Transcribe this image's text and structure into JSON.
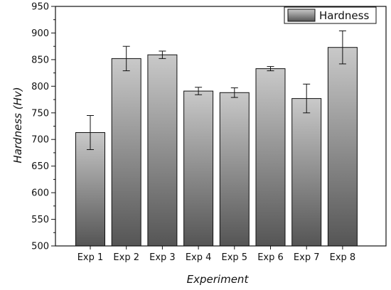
{
  "chart_data": {
    "type": "bar",
    "title": "",
    "xlabel": "Experiment",
    "ylabel": "Hardness (Hv)",
    "categories": [
      "Exp 1",
      "Exp 2",
      "Exp 3",
      "Exp 4",
      "Exp 5",
      "Exp 6",
      "Exp 7",
      "Exp 8"
    ],
    "series": [
      {
        "name": "Hardness",
        "values": [
          713,
          852,
          859,
          791,
          788,
          833,
          777,
          873
        ],
        "error": [
          32,
          23,
          7,
          7,
          9,
          4,
          27,
          31
        ]
      }
    ],
    "ylim": [
      500,
      950
    ],
    "yticks": [
      500,
      550,
      600,
      650,
      700,
      750,
      800,
      850,
      900,
      950
    ],
    "grid": false,
    "legend": "top-right",
    "bar_fill": "vertical-gradient",
    "colors": {
      "bar_top": "#c9c9c9",
      "bar_bottom": "#555555",
      "bar_edge": "#111111",
      "axis": "#111111"
    }
  }
}
